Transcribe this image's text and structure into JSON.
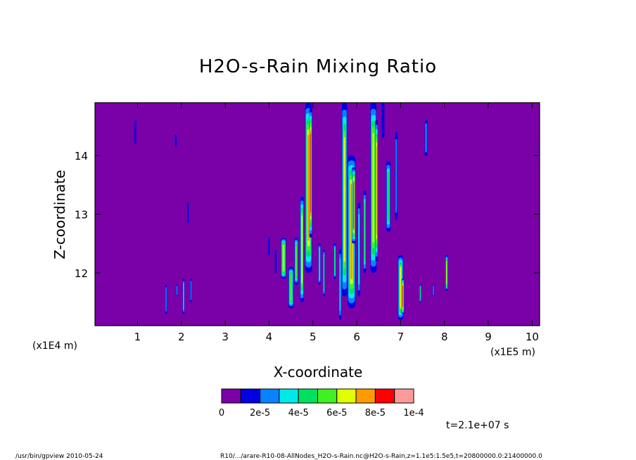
{
  "chart_data": {
    "type": "heatmap",
    "title": "H2O-s-Rain Mixing Ratio",
    "xlabel": "X-coordinate",
    "ylabel": "Z-coordinate",
    "x_unit": "(x1E5 m)",
    "y_unit": "(x1E4 m)",
    "x_range": [
      0.03,
      10.17
    ],
    "y_range": [
      11.1,
      14.9
    ],
    "x_ticks": [
      "1",
      "2",
      "3",
      "4",
      "5",
      "6",
      "7",
      "8",
      "9",
      "10"
    ],
    "y_ticks": [
      "12",
      "13",
      "14"
    ],
    "colorbar": {
      "colors": [
        "#7a00a8",
        "#0000e0",
        "#0a82ff",
        "#00e8e8",
        "#00e060",
        "#40f020",
        "#e0ff00",
        "#ff9a00",
        "#ff0000",
        "#ff9a9a"
      ],
      "labels": [
        "0",
        "2e-5",
        "4e-5",
        "6e-5",
        "8e-5",
        "1e-4"
      ]
    },
    "background_color": "#7a00a8",
    "features": [
      {
        "x": 0.95,
        "y0": 14.2,
        "y1": 14.6,
        "w": 0.03,
        "level": 1
      },
      {
        "x": 1.87,
        "y0": 14.15,
        "y1": 14.35,
        "w": 0.02,
        "level": 1
      },
      {
        "x": 2.15,
        "y0": 12.85,
        "y1": 13.2,
        "w": 0.03,
        "level": 1
      },
      {
        "x": 1.65,
        "y0": 11.3,
        "y1": 11.8,
        "w": 0.04,
        "level": 2
      },
      {
        "x": 1.9,
        "y0": 11.6,
        "y1": 11.8,
        "w": 0.04,
        "level": 2
      },
      {
        "x": 2.05,
        "y0": 11.3,
        "y1": 11.9,
        "w": 0.04,
        "level": 3
      },
      {
        "x": 2.22,
        "y0": 11.5,
        "y1": 11.9,
        "w": 0.03,
        "level": 2
      },
      {
        "x": 4.0,
        "y0": 12.3,
        "y1": 12.6,
        "w": 0.03,
        "level": 1
      },
      {
        "x": 4.15,
        "y0": 12.0,
        "y1": 12.4,
        "w": 0.03,
        "level": 1
      },
      {
        "x": 4.33,
        "y0": 11.9,
        "y1": 12.6,
        "w": 0.12,
        "level": 6
      },
      {
        "x": 4.5,
        "y0": 11.4,
        "y1": 12.1,
        "w": 0.12,
        "level": 5
      },
      {
        "x": 4.62,
        "y0": 11.8,
        "y1": 12.6,
        "w": 0.08,
        "level": 5
      },
      {
        "x": 4.75,
        "y0": 11.5,
        "y1": 13.3,
        "w": 0.08,
        "level": 6
      },
      {
        "x": 4.9,
        "y0": 12.0,
        "y1": 14.9,
        "w": 0.16,
        "level": 7
      },
      {
        "x": 4.95,
        "y0": 12.6,
        "y1": 14.8,
        "w": 0.06,
        "level": 8
      },
      {
        "x": 5.15,
        "y0": 11.8,
        "y1": 12.5,
        "w": 0.05,
        "level": 4
      },
      {
        "x": 5.25,
        "y0": 11.6,
        "y1": 12.4,
        "w": 0.04,
        "level": 4
      },
      {
        "x": 5.5,
        "y0": 11.9,
        "y1": 12.5,
        "w": 0.05,
        "level": 4
      },
      {
        "x": 5.62,
        "y0": 11.2,
        "y1": 12.4,
        "w": 0.05,
        "level": 3
      },
      {
        "x": 5.72,
        "y0": 11.6,
        "y1": 14.9,
        "w": 0.12,
        "level": 6
      },
      {
        "x": 5.88,
        "y0": 11.4,
        "y1": 14.0,
        "w": 0.18,
        "level": 7
      },
      {
        "x": 5.93,
        "y0": 12.5,
        "y1": 13.8,
        "w": 0.08,
        "level": 8
      },
      {
        "x": 6.05,
        "y0": 11.6,
        "y1": 13.2,
        "w": 0.06,
        "level": 3
      },
      {
        "x": 6.18,
        "y0": 12.0,
        "y1": 13.4,
        "w": 0.06,
        "level": 4
      },
      {
        "x": 6.38,
        "y0": 12.0,
        "y1": 14.9,
        "w": 0.14,
        "level": 6
      },
      {
        "x": 6.45,
        "y0": 12.2,
        "y1": 14.6,
        "w": 0.06,
        "level": 7
      },
      {
        "x": 6.6,
        "y0": 14.3,
        "y1": 14.9,
        "w": 0.06,
        "level": 1
      },
      {
        "x": 6.72,
        "y0": 12.7,
        "y1": 13.9,
        "w": 0.1,
        "level": 4
      },
      {
        "x": 6.9,
        "y0": 12.9,
        "y1": 14.4,
        "w": 0.05,
        "level": 2
      },
      {
        "x": 7.0,
        "y0": 11.2,
        "y1": 12.3,
        "w": 0.12,
        "level": 6
      },
      {
        "x": 7.05,
        "y0": 11.3,
        "y1": 11.9,
        "w": 0.06,
        "level": 8
      },
      {
        "x": 7.58,
        "y0": 14.0,
        "y1": 14.6,
        "w": 0.06,
        "level": 2
      },
      {
        "x": 7.45,
        "y0": 11.5,
        "y1": 11.8,
        "w": 0.03,
        "level": 4
      },
      {
        "x": 7.75,
        "y0": 11.6,
        "y1": 11.8,
        "w": 0.03,
        "level": 2
      },
      {
        "x": 8.05,
        "y0": 11.7,
        "y1": 12.3,
        "w": 0.05,
        "level": 6
      }
    ]
  },
  "time_label": "t=2.1e+07 s",
  "footer": {
    "left": "/usr/bin/gpview  2010-05-24",
    "right": "R10/.../arare-R10-08-AllNodes_H2O-s-Rain.nc@H2O-s-Rain,z=1.1e5:1.5e5,t=20800000.0:21400000.0"
  }
}
